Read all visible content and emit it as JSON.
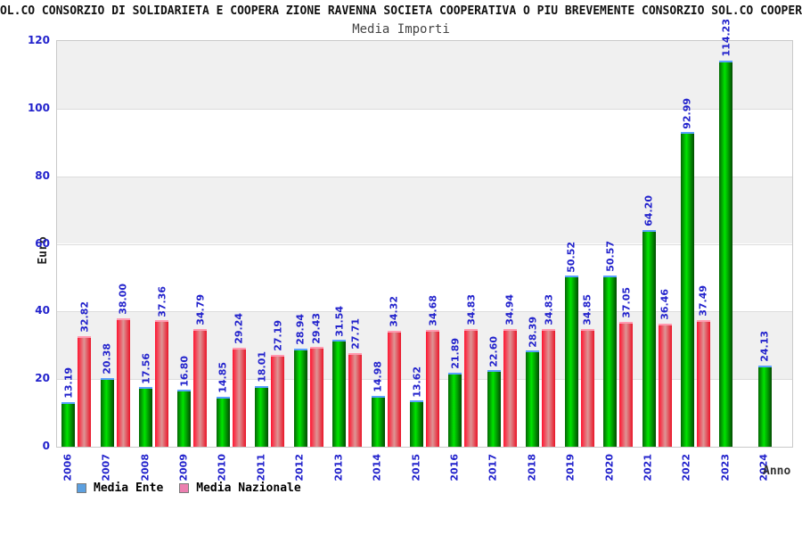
{
  "header": {
    "clipped_title": "CIALE SOL.CO CONSORZIO DI SOLIDARIETA E COOPERA ZIONE RAVENNA SOCIETA COOPERATIVA O PIU BREVEMENTE CONSORZIO SOL.CO COOPER ATI (c"
  },
  "chart_data": {
    "type": "bar",
    "title": "Media Importi",
    "xlabel": "Anno",
    "ylabel": "Euro",
    "ylim": [
      0,
      120
    ],
    "yticks": [
      0,
      20,
      40,
      60,
      80,
      100,
      120
    ],
    "grid": true,
    "legend_position": "bottom-left",
    "categories": [
      "2006",
      "2007",
      "2008",
      "2009",
      "2010",
      "2011",
      "2012",
      "2013",
      "2014",
      "2015",
      "2016",
      "2017",
      "2018",
      "2019",
      "2020",
      "2021",
      "2022",
      "2023",
      "2024"
    ],
    "series": [
      {
        "name": "Media Ente",
        "legend_color": "#5ca0e0",
        "values": [
          13.19,
          20.38,
          17.56,
          16.8,
          14.85,
          18.01,
          28.94,
          31.54,
          14.98,
          13.62,
          21.89,
          22.6,
          28.39,
          50.52,
          50.57,
          64.2,
          92.99,
          114.23,
          24.13
        ]
      },
      {
        "name": "Media Nazionale",
        "legend_color": "#ec7fb0",
        "values": [
          32.82,
          38.0,
          37.36,
          34.79,
          29.24,
          27.19,
          29.43,
          27.71,
          34.32,
          34.68,
          34.83,
          34.94,
          34.83,
          34.85,
          37.05,
          36.46,
          37.49,
          null,
          null
        ]
      }
    ]
  },
  "colors": {
    "label_blue": "#2222cc",
    "title_black": "#111111",
    "subtitle_gray": "#444444",
    "axis_title_gray": "#333333",
    "grid_line": "#dcdcdc",
    "band_gray": "#f0f0f0",
    "band_white": "#ffffff",
    "plot_border": "#c9c9c9",
    "green_bar_edge": "#056605",
    "green_bar_mid": "#00e400",
    "green_bar_edge2": "#024a02",
    "green_bar_cap": "#5aa0ff",
    "red_bar_edge": "#ff1430",
    "red_bar_mid": "#dd9595",
    "red_bar_edge2": "#ea1428",
    "red_bar_cap": "#ff9ab0"
  }
}
